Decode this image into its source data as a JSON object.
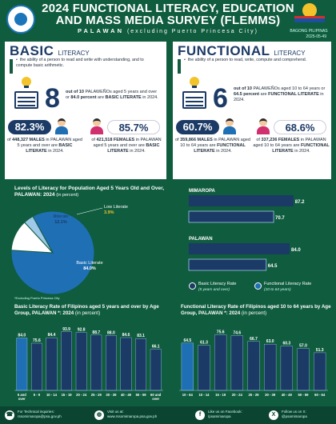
{
  "header": {
    "title_line1": "2024 FUNCTIONAL LITERACY, EDUCATION",
    "title_line2": "AND MASS MEDIA SURVEY (FLEMMS)",
    "location": "PALAWAN",
    "location_note": "(excluding Puerto Princesa City)",
    "logo_text": "BAGONG PILIPINAS",
    "ref_code": "2025-05-49"
  },
  "basic": {
    "title": "BASIC",
    "title_small": "LITERACY",
    "definition": "the ability of a person to read and write with understanding, and to compute basic arithmetic.",
    "big_number": "8",
    "big_text_1": "out of 10",
    "big_text_2": " PALAWEÑOs aged 5 years and over or ",
    "big_text_3": "84.0 percent",
    "big_text_4": " are ",
    "big_text_5": "BASIC LITERATE",
    "big_text_6": " in 2024.",
    "male_pct": "82.3%",
    "male_a": "of ",
    "male_count": "448,327 MALES",
    "male_b": " in PALAWAN aged 5 years and over are ",
    "male_c": "BASIC LITERATE",
    "male_d": " in 2024.",
    "female_pct": "85.7%",
    "female_a": "of ",
    "female_count": "421,518 FEMALES",
    "female_b": " in PALAWAN aged 5 years and over are ",
    "female_c": "BASIC LITERATE",
    "female_d": " in 2024."
  },
  "functional": {
    "title": "FUNCTIONAL",
    "title_small": "LITERACY",
    "definition": "the ability of a person to read, write, compute and comprehend.",
    "big_number": "6",
    "big_text_1": "out of 10",
    "big_text_2": " PALAWEÑOs aged 10 to 64 years or ",
    "big_text_3": "64.5 percent",
    "big_text_4": " are ",
    "big_text_5": "FUNCTIONAL LITERATE",
    "big_text_6": " in 2024.",
    "male_pct": "60.7%",
    "male_a": "of ",
    "male_count": "359,866 MALES",
    "male_b": " in PALAWAN aged 10 to 64 years are ",
    "male_c": "FUNCTIONAL LITERATE",
    "male_d": " in 2024.",
    "female_pct": "68.6%",
    "female_a": "of ",
    "female_count": "337,236 FEMALES",
    "female_b": " in PALAWAN aged 10 to 64 years are ",
    "female_c": "FUNCTIONAL LITERATE",
    "female_d": " in 2024."
  },
  "colors": {
    "green": "#0f5c3f",
    "navy": "#1c3a66",
    "blue": "#1f6fb5",
    "light_blue": "#9ec9e8",
    "yellow": "#f2c32b",
    "white": "#ffffff"
  },
  "icons": {
    "bulb": "lightbulb-icon",
    "book": "book-icon",
    "male": "male-person-icon",
    "female": "female-person-icon",
    "phone": "phone-icon",
    "globe": "globe-icon",
    "facebook": "facebook-icon",
    "x": "x-icon"
  },
  "footer": {
    "tech_label": "For Technical inquiries:",
    "tech_value": "rssomimaropa@psa.gov.ph",
    "web_label": "Visit us at:",
    "web_value": "www.rssomimaropa.psa.gov.ph",
    "fb_label": "Like us on Facebook:",
    "fb_value": "/psamimaropa",
    "x_label": "Follow us on X:",
    "x_value": "@psamimaropa"
  },
  "chart_data": [
    {
      "type": "pie",
      "title": "Levels of Literacy for Population Aged 5 Years Old and Over, PALAWAN: 2024",
      "title_unit": "(in percent)",
      "note": "*Excluding Puerto Princesa City",
      "slices": [
        {
          "label": "Basic Literate",
          "value": 84.0,
          "color": "#1f6fb5"
        },
        {
          "label": "Illiterate",
          "value": 12.1,
          "color": "#ffffff"
        },
        {
          "label": "Low Literate",
          "value": 3.9,
          "color": "#9ec9e8"
        }
      ],
      "value_labels": [
        "84.0%",
        "12.1%",
        "3.9%"
      ]
    },
    {
      "type": "bar",
      "orientation": "horizontal",
      "categories": [
        "MIMAROPA",
        "PALAWAN"
      ],
      "series": [
        {
          "name": "Basic Literacy Rate",
          "note": "(5 years and over)",
          "values": [
            87.2,
            84.0
          ],
          "color": "#1c3a66"
        },
        {
          "name": "Functional Literacy Rate",
          "note": "(10 to 64 years)",
          "values": [
            70.7,
            64.5
          ],
          "color": "#1c3a66"
        }
      ],
      "xlim": [
        0,
        100
      ]
    },
    {
      "type": "bar",
      "title": "Basic Literacy Rate of Filipinos aged 5 years and over by Age Group, PALAWAN *: 2024",
      "title_unit": "(in percent)",
      "categories": [
        "5 and over",
        "5 - 9",
        "10 - 14",
        "15 - 19",
        "20 - 24",
        "25 - 29",
        "30 - 39",
        "40 - 49",
        "50 - 59",
        "60 and over"
      ],
      "values": [
        84.0,
        75.6,
        84.4,
        93.9,
        92.8,
        88.7,
        88.0,
        84.6,
        83.1,
        66.1
      ],
      "value_labels": [
        "84.0",
        "75.6",
        "84.4",
        "93.9",
        "92.8",
        "88.7",
        "88.0",
        "84.6",
        "83.1",
        "66.1"
      ],
      "ylim": [
        0,
        100
      ]
    },
    {
      "type": "bar",
      "title": "Functional Literacy Rate of Filipinos aged 10 to 64 years by Age Group, PALAWAN *: 2024",
      "title_unit": "(in percent)",
      "categories": [
        "10 - 64",
        "10 - 14",
        "15 - 19",
        "20 - 24",
        "25 - 29",
        "30 - 39",
        "40 - 49",
        "50 - 59",
        "60 - 64"
      ],
      "values": [
        64.5,
        61.3,
        75.6,
        74.6,
        66.7,
        63.0,
        60.3,
        57.0,
        51.3
      ],
      "value_labels": [
        "64.5",
        "61.3",
        "75.6",
        "74.6",
        "66.7",
        "63.0",
        "60.3",
        "57.0",
        "51.3"
      ],
      "ylim": [
        0,
        85
      ]
    }
  ]
}
